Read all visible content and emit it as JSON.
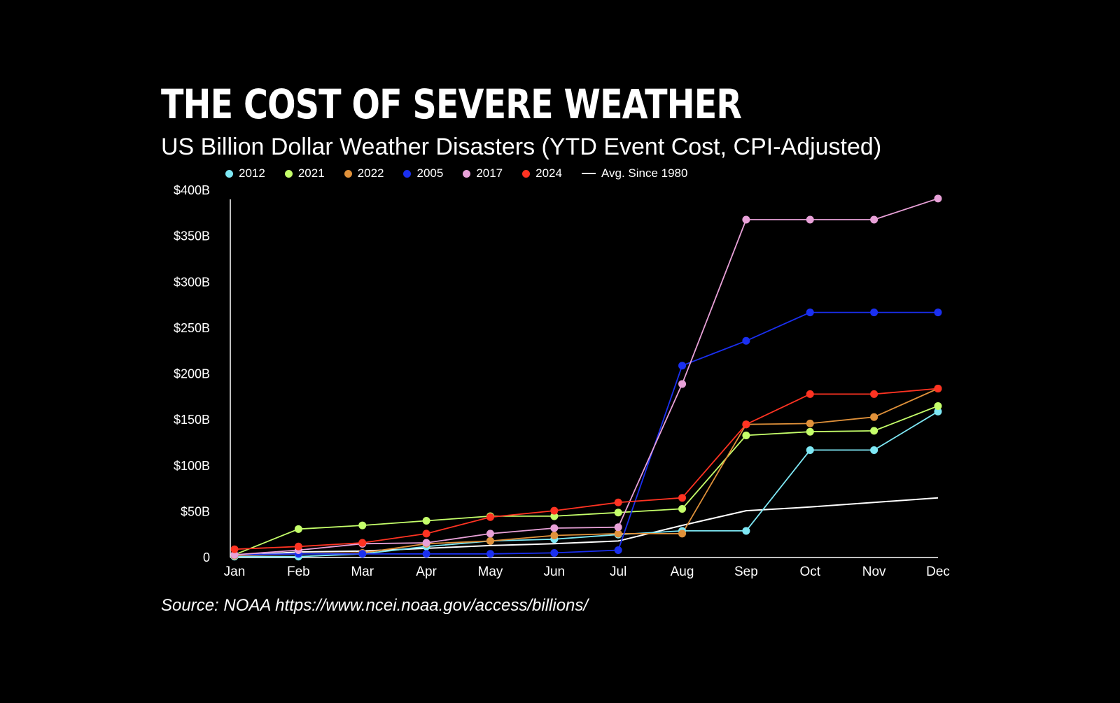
{
  "chart_data": {
    "type": "line",
    "title": "THE COST OF SEVERE WEATHER",
    "subtitle": "US Billion Dollar Weather Disasters (YTD Event Cost, CPI-Adjusted)",
    "xlabel": "",
    "ylabel": "",
    "categories": [
      "Jan",
      "Feb",
      "Mar",
      "Apr",
      "May",
      "Jun",
      "Jul",
      "Aug",
      "Sep",
      "Oct",
      "Nov",
      "Dec"
    ],
    "ylim": [
      0,
      400
    ],
    "yticks": [
      0,
      50,
      100,
      150,
      200,
      250,
      300,
      350,
      400
    ],
    "ytick_labels": [
      "0",
      "$50B",
      "$100B",
      "$150B",
      "$200B",
      "$250B",
      "$300B",
      "$350B",
      "$400B"
    ],
    "legend_position": "top",
    "grid": false,
    "series": [
      {
        "name": "2012",
        "color": "#7ee8f5",
        "markers": true,
        "values": [
          1,
          1,
          4,
          12,
          18,
          20,
          25,
          29,
          29,
          117,
          117,
          159
        ]
      },
      {
        "name": "2021",
        "color": "#c5ff6a",
        "markers": true,
        "values": [
          3,
          31,
          35,
          40,
          45,
          45,
          49,
          53,
          133,
          137,
          138,
          165
        ]
      },
      {
        "name": "2022",
        "color": "#e0913a",
        "markers": true,
        "values": [
          2,
          4,
          5,
          15,
          18,
          24,
          26,
          26,
          145,
          146,
          153,
          184
        ]
      },
      {
        "name": "2005",
        "color": "#1a2ff0",
        "markers": true,
        "values": [
          3,
          4,
          4,
          4,
          4,
          5,
          8,
          209,
          236,
          267,
          267,
          267
        ]
      },
      {
        "name": "2017",
        "color": "#e8a1d8",
        "markers": true,
        "values": [
          3,
          8,
          15,
          16,
          26,
          32,
          33,
          189,
          368,
          368,
          368,
          391
        ]
      },
      {
        "name": "2024",
        "color": "#ff3322",
        "markers": true,
        "values": [
          9,
          12,
          16,
          26,
          44,
          51,
          60,
          65,
          145,
          178,
          178,
          184
        ]
      },
      {
        "name": "Avg. Since 1980",
        "color": "#ffffff",
        "markers": false,
        "values": [
          2,
          6,
          7,
          10,
          13,
          15,
          18,
          35,
          51,
          55,
          60,
          65
        ]
      }
    ]
  },
  "source": "Source: NOAA https://www.ncei.noaa.gov/access/billions/"
}
